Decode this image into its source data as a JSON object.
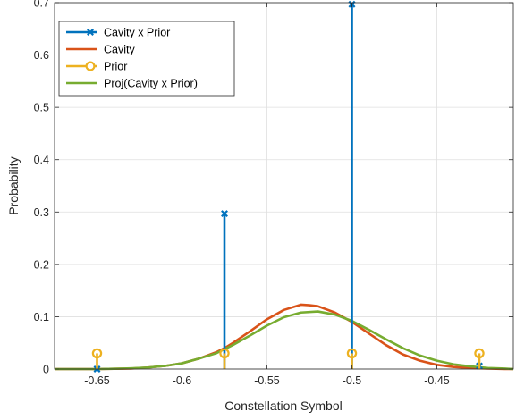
{
  "chart_data": {
    "type": "line",
    "title": "",
    "xlabel": "Constellation Symbol",
    "ylabel": "Probability",
    "xlim": [
      -0.675,
      -0.405
    ],
    "ylim": [
      0,
      0.7
    ],
    "xticks": [
      -0.65,
      -0.6,
      -0.55,
      -0.5,
      -0.45
    ],
    "xtick_labels": [
      "-0.65",
      "-0.6",
      "-0.55",
      "-0.5",
      "-0.45"
    ],
    "yticks": [
      0,
      0.1,
      0.2,
      0.3,
      0.4,
      0.5,
      0.6,
      0.7
    ],
    "ytick_labels": [
      "0",
      "0.1",
      "0.2",
      "0.3",
      "0.4",
      "0.5",
      "0.6",
      "0.7"
    ],
    "grid": true,
    "legend_position": "top-left",
    "series": [
      {
        "name": "Cavity x Prior",
        "style": "stem",
        "marker": "x",
        "color": "#0072BD",
        "x": [
          -0.65,
          -0.575,
          -0.5,
          -0.425
        ],
        "y": [
          0.0,
          0.297,
          0.697,
          0.006
        ]
      },
      {
        "name": "Cavity",
        "style": "line",
        "color": "#D95319",
        "x": [
          -0.675,
          -0.66,
          -0.65,
          -0.64,
          -0.63,
          -0.62,
          -0.61,
          -0.6,
          -0.59,
          -0.58,
          -0.575,
          -0.57,
          -0.56,
          -0.55,
          -0.54,
          -0.53,
          -0.525,
          -0.52,
          -0.51,
          -0.5,
          -0.49,
          -0.48,
          -0.47,
          -0.46,
          -0.45,
          -0.44,
          -0.43,
          -0.42,
          -0.41,
          -0.405
        ],
        "y": [
          0.0,
          0.0,
          0.0,
          0.0005,
          0.001,
          0.003,
          0.006,
          0.011,
          0.02,
          0.032,
          0.04,
          0.05,
          0.072,
          0.095,
          0.113,
          0.123,
          0.122,
          0.12,
          0.108,
          0.09,
          0.068,
          0.046,
          0.028,
          0.016,
          0.008,
          0.004,
          0.002,
          0.001,
          0.0,
          0.0
        ]
      },
      {
        "name": "Prior",
        "style": "stem",
        "marker": "o",
        "color": "#EDB120",
        "x": [
          -0.65,
          -0.575,
          -0.5,
          -0.425
        ],
        "y": [
          0.03,
          0.03,
          0.03,
          0.03
        ]
      },
      {
        "name": "Proj(Cavity x Prior)",
        "style": "line",
        "color": "#77AC30",
        "x": [
          -0.675,
          -0.66,
          -0.65,
          -0.64,
          -0.63,
          -0.62,
          -0.61,
          -0.6,
          -0.59,
          -0.58,
          -0.575,
          -0.57,
          -0.56,
          -0.55,
          -0.54,
          -0.53,
          -0.52,
          -0.51,
          -0.5,
          -0.49,
          -0.48,
          -0.47,
          -0.46,
          -0.45,
          -0.44,
          -0.43,
          -0.42,
          -0.41,
          -0.405
        ],
        "y": [
          0.0,
          0.0,
          0.0,
          0.0005,
          0.0015,
          0.003,
          0.006,
          0.011,
          0.02,
          0.03,
          0.038,
          0.046,
          0.064,
          0.083,
          0.099,
          0.108,
          0.11,
          0.104,
          0.092,
          0.075,
          0.057,
          0.04,
          0.026,
          0.016,
          0.009,
          0.005,
          0.002,
          0.001,
          0.0
        ]
      }
    ]
  }
}
